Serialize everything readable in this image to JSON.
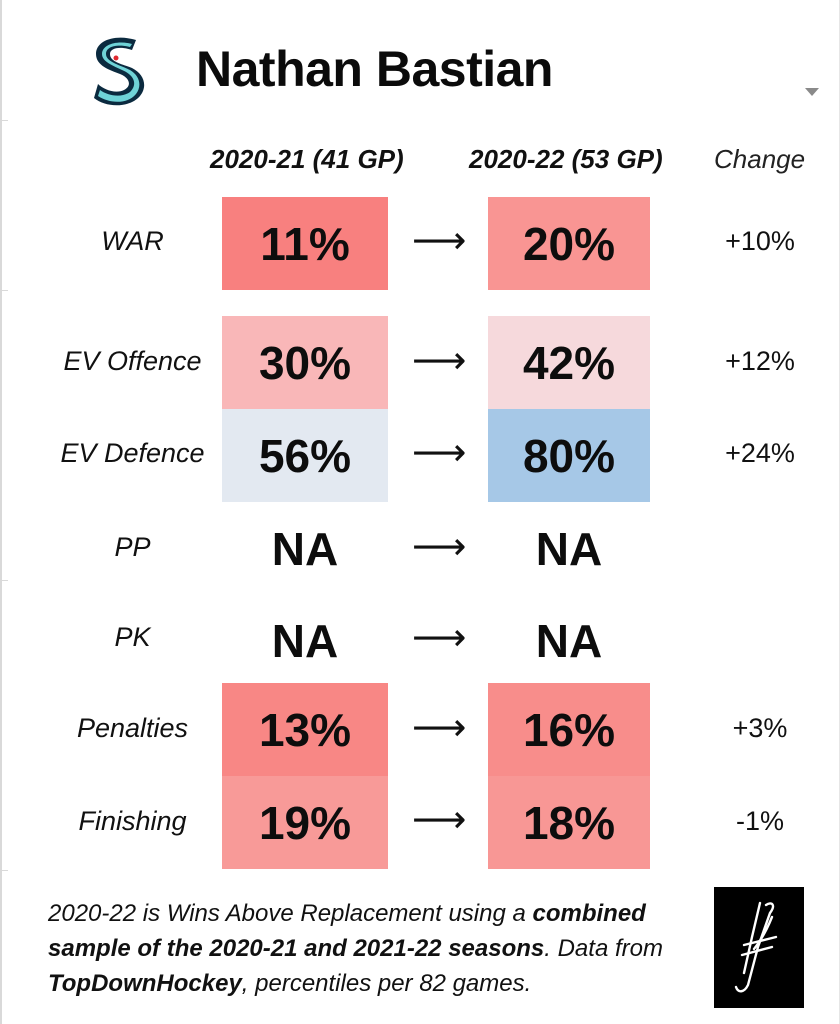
{
  "header": {
    "player_name": "Nathan Bastian",
    "team_logo_icon": "kraken-s-logo-icon",
    "menu_icon": "chevron-down-icon"
  },
  "columns": {
    "season1": "2020-21 (41 GP)",
    "season2": "2020-22 (53 GP)",
    "change": "Change"
  },
  "rows": [
    {
      "label": "WAR",
      "season1": "11%",
      "season2": "20%",
      "change": "+10%",
      "color1": "#f8807f",
      "color2": "#f99593"
    },
    {
      "label": "EV Offence",
      "season1": "30%",
      "season2": "42%",
      "change": "+12%",
      "color1": "#f9b7b8",
      "color2": "#f6d9dc"
    },
    {
      "label": "EV Defence",
      "season1": "56%",
      "season2": "80%",
      "change": "+24%",
      "color1": "#e3e9f1",
      "color2": "#a6c8e7"
    },
    {
      "label": "PP",
      "season1": "NA",
      "season2": "NA",
      "change": ""
    },
    {
      "label": "PK",
      "season1": "NA",
      "season2": "NA",
      "change": ""
    },
    {
      "label": "Penalties",
      "season1": "13%",
      "season2": "16%",
      "change": "+3%",
      "color1": "#f88785",
      "color2": "#f88d8b"
    },
    {
      "label": "Finishing",
      "season1": "19%",
      "season2": "18%",
      "change": "-1%",
      "color1": "#f89a98",
      "color2": "#f89795"
    }
  ],
  "arrow": "⟶",
  "footnote": {
    "part1": "2020-22 is Wins Above Replacement using a ",
    "bold1": "combined sample of the 2020-21 and 2021-22 seasons",
    "part2": ". Data from ",
    "bold2": "TopDownHockey",
    "part3": ", percentiles per 82 games."
  },
  "brand_mark_icon": "jfresh-monogram-icon"
}
